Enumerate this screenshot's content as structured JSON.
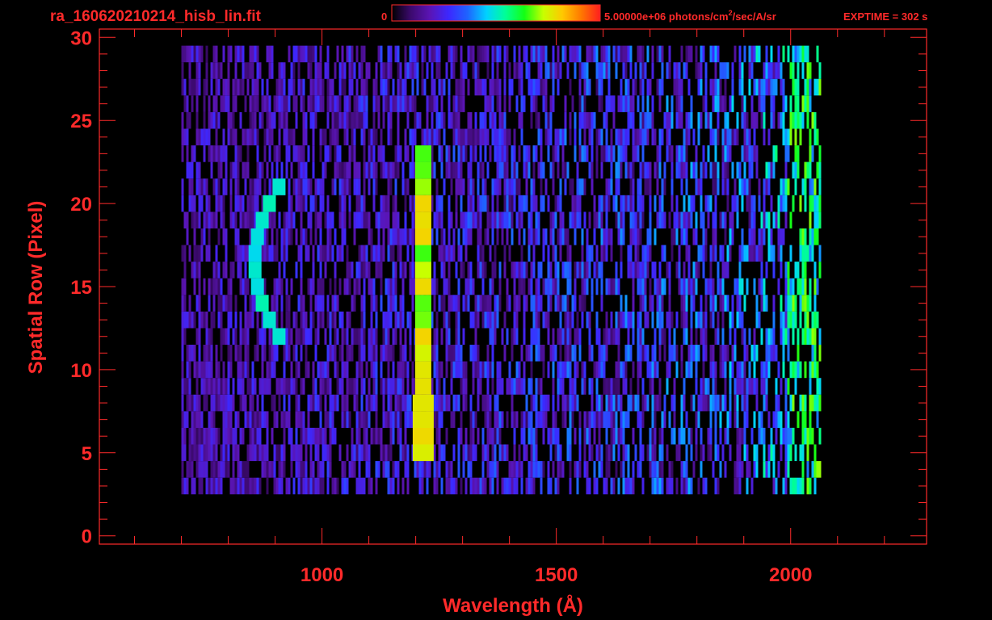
{
  "header": {
    "filename": "ra_160620210214_hisb_lin.fit",
    "colorbar_min_label": "0",
    "colorbar_max_label": "5.00000e+06 photons/cm",
    "colorbar_max_exponent": "2",
    "colorbar_max_suffix": "/sec/A/sr",
    "exptime_label": "EXPTIME = 302 s"
  },
  "colors": {
    "axis": "#ff2a2a",
    "background": "#000000",
    "colormap": [
      "#000000",
      "#3c0a6e",
      "#5a14b4",
      "#3c28ff",
      "#1e64ff",
      "#00d2ff",
      "#00ff96",
      "#14ff14",
      "#c8ff00",
      "#ffc800",
      "#ff7800",
      "#ff1e1e"
    ]
  },
  "chart_data": {
    "type": "heatmap",
    "title": "ra_160620210214_hisb_lin.fit",
    "xlabel": "Wavelength (Å)",
    "ylabel": "Spatial Row (Pixel)",
    "xlim": [
      525,
      2290
    ],
    "ylim": [
      -0.5,
      30.5
    ],
    "x_ticks": [
      1000,
      1500,
      2000
    ],
    "y_ticks": [
      0,
      5,
      10,
      15,
      20,
      25,
      30
    ],
    "colorbar": {
      "min": 0,
      "max": 5000000,
      "unit": "photons/cm^2/sec/A/sr"
    },
    "exptime_s": 302,
    "grid": false,
    "features": [
      {
        "name": "Lyman-alpha",
        "wavelength": 1216,
        "rows": [
          5,
          23
        ],
        "peak_intensity": 0.75
      },
      {
        "name": "arc",
        "wavelength_center": 860,
        "rows": [
          12,
          21
        ],
        "peak_intensity": 0.5
      }
    ],
    "background_noise_extent": {
      "wavelength": [
        700,
        2065
      ],
      "rows": [
        3,
        29
      ]
    },
    "detector_edge": {
      "wavelength": [
        1990,
        2070
      ],
      "peak_intensity": 0.8
    }
  }
}
